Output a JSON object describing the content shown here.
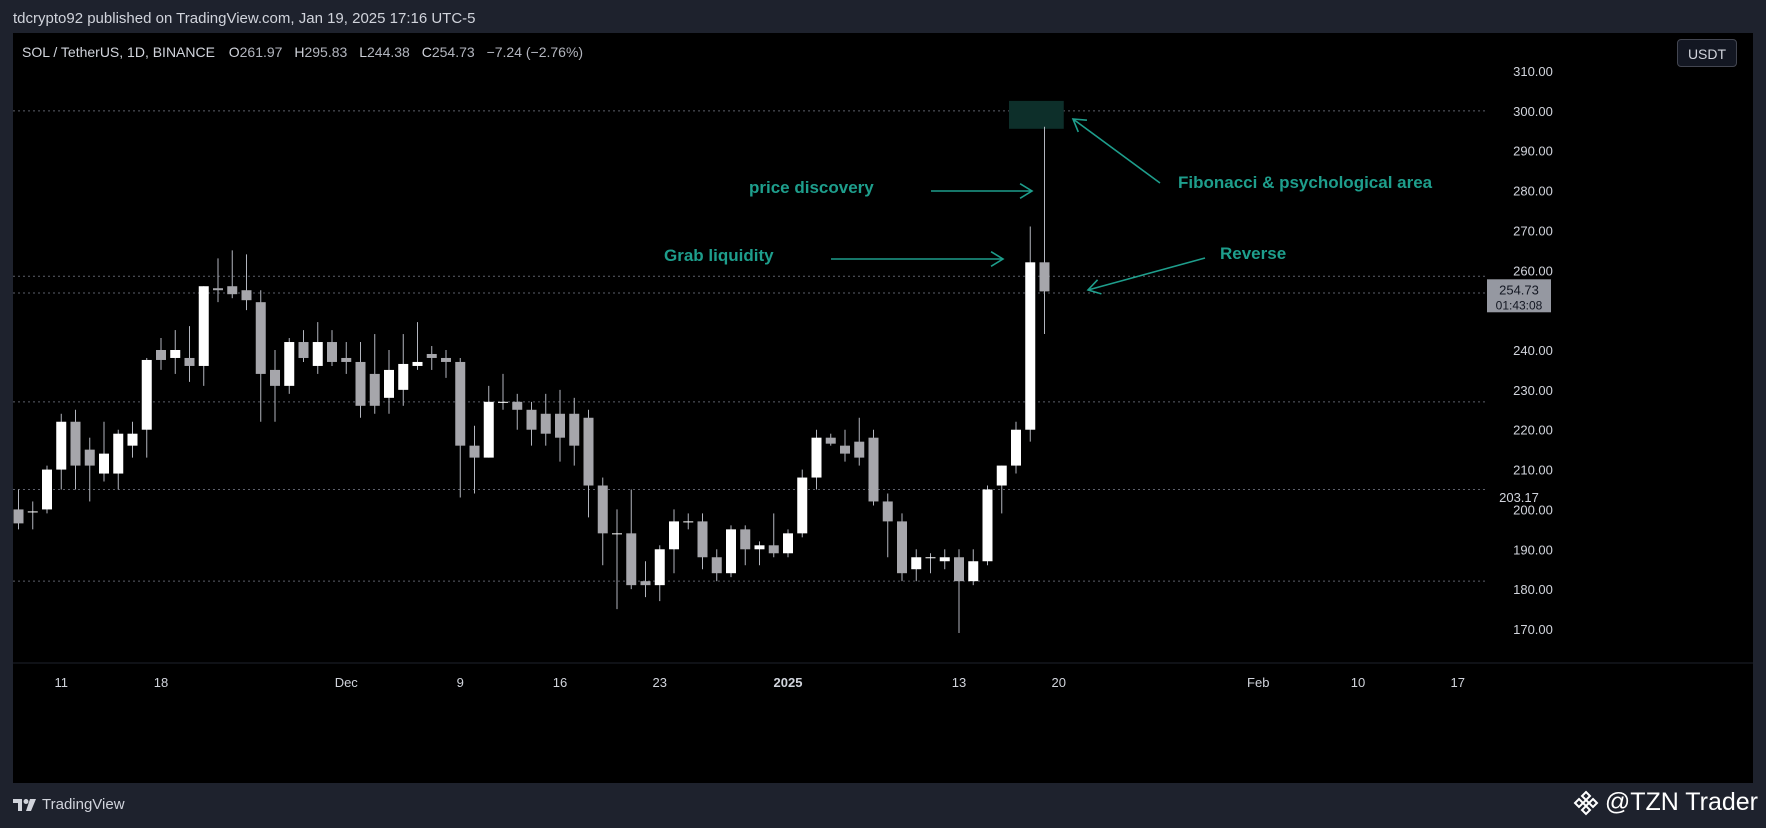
{
  "header": {
    "published_text": "tdcrypto92 published on TradingView.com, Jan 19, 2025 17:16 UTC-5"
  },
  "legend": {
    "symbol": "SOL / TetherUS, 1D, BINANCE",
    "open_label": "O",
    "open": "261.97",
    "high_label": "H",
    "high": "295.83",
    "low_label": "L",
    "low": "244.38",
    "close_label": "C",
    "close": "254.73",
    "change": "−7.24 (−2.76%)"
  },
  "currency_button": "USDT",
  "price_labels": {
    "last_price": "254.73",
    "countdown": "01:43:08",
    "level_price": "203.17"
  },
  "footer": {
    "brand": "TradingView",
    "watermark": "@TZN Trader"
  },
  "annotations": [
    {
      "text": "price discovery"
    },
    {
      "text": "Grab liquidity"
    },
    {
      "text": "Fibonacci & psychological area"
    },
    {
      "text": "Reverse"
    }
  ],
  "colors": {
    "background": "#000000",
    "frame": "#1e222d",
    "candle_up": "#ffffff",
    "candle_down": "#a6a6ab",
    "wick": "#b2b5be",
    "annotation": "#1e9e8c",
    "highlight_zone": "#0d2f2a",
    "grid_dotted": "#5d606b",
    "axis_text": "#d1d4dc"
  },
  "chart_data": {
    "type": "candlestick",
    "title": "SOL / TetherUS, 1D, BINANCE",
    "ylim": [
      163,
      316
    ],
    "y_ticks": [
      170,
      180,
      190,
      200,
      210,
      220,
      230,
      240,
      250,
      260,
      270,
      280,
      290,
      300,
      310
    ],
    "y_tick_labels": [
      "170.00",
      "180.00",
      "190.00",
      "200.00",
      "210.00",
      "220.00",
      "230.00",
      "240.00",
      "",
      "260.00",
      "270.00",
      "280.00",
      "290.00",
      "300.00",
      "310.00"
    ],
    "x_tick_labels": [
      {
        "label": "11",
        "date": "2024-11-11",
        "bold": false
      },
      {
        "label": "18",
        "date": "2024-11-18",
        "bold": false
      },
      {
        "label": "Dec",
        "date": "2024-12-01",
        "bold": false
      },
      {
        "label": "9",
        "date": "2024-12-09",
        "bold": false
      },
      {
        "label": "16",
        "date": "2024-12-16",
        "bold": false
      },
      {
        "label": "23",
        "date": "2024-12-23",
        "bold": false
      },
      {
        "label": "2025",
        "date": "2025-01-01",
        "bold": true
      },
      {
        "label": "13",
        "date": "2025-01-13",
        "bold": false
      },
      {
        "label": "20",
        "date": "2025-01-20",
        "bold": false
      },
      {
        "label": "Feb",
        "date": "2025-02-03",
        "bold": false
      },
      {
        "label": "10",
        "date": "2025-02-10",
        "bold": false
      },
      {
        "label": "17",
        "date": "2025-02-17",
        "bold": false
      }
    ],
    "first_date": "2024-11-08",
    "x_end_date": "2025-02-20",
    "horizontal_levels": [
      300.0,
      258.5,
      254.3,
      227.0,
      205.0,
      182.0
    ],
    "highlight_zone": {
      "date_start": "2025-01-17",
      "date_end": "2025-01-20",
      "y_low": 295.5,
      "y_high": 302.5
    },
    "candles": [
      {
        "o": 200,
        "h": 205,
        "l": 195,
        "c": 196.5
      },
      {
        "o": 199.5,
        "h": 202,
        "l": 195,
        "c": 199.5
      },
      {
        "o": 200,
        "h": 211,
        "l": 199,
        "c": 210
      },
      {
        "o": 210,
        "h": 224,
        "l": 205,
        "c": 222
      },
      {
        "o": 222,
        "h": 225,
        "l": 205,
        "c": 211
      },
      {
        "o": 215,
        "h": 218,
        "l": 202,
        "c": 211
      },
      {
        "o": 209,
        "h": 222,
        "l": 207,
        "c": 214
      },
      {
        "o": 209,
        "h": 220,
        "l": 205,
        "c": 219
      },
      {
        "o": 216,
        "h": 222,
        "l": 213,
        "c": 219
      },
      {
        "o": 220,
        "h": 238,
        "l": 213,
        "c": 237.5
      },
      {
        "o": 240,
        "h": 243,
        "l": 235,
        "c": 237.5
      },
      {
        "o": 238,
        "h": 245,
        "l": 234,
        "c": 240
      },
      {
        "o": 238,
        "h": 246,
        "l": 232,
        "c": 236
      },
      {
        "o": 236,
        "h": 256,
        "l": 231,
        "c": 256
      },
      {
        "o": 255.5,
        "h": 263,
        "l": 252,
        "c": 255
      },
      {
        "o": 256,
        "h": 265,
        "l": 253,
        "c": 254
      },
      {
        "o": 255,
        "h": 264,
        "l": 250,
        "c": 252.5
      },
      {
        "o": 252,
        "h": 255,
        "l": 222,
        "c": 234
      },
      {
        "o": 235,
        "h": 240,
        "l": 222,
        "c": 231
      },
      {
        "o": 231,
        "h": 243,
        "l": 229,
        "c": 242
      },
      {
        "o": 242,
        "h": 245,
        "l": 237,
        "c": 238
      },
      {
        "o": 236,
        "h": 247,
        "l": 234,
        "c": 242
      },
      {
        "o": 242,
        "h": 245,
        "l": 236,
        "c": 237
      },
      {
        "o": 238,
        "h": 242,
        "l": 234,
        "c": 237
      },
      {
        "o": 237,
        "h": 242,
        "l": 223,
        "c": 226
      },
      {
        "o": 234,
        "h": 244,
        "l": 224,
        "c": 226
      },
      {
        "o": 228,
        "h": 240,
        "l": 224,
        "c": 235
      },
      {
        "o": 230,
        "h": 244,
        "l": 226,
        "c": 236.5
      },
      {
        "o": 236,
        "h": 247,
        "l": 235,
        "c": 237
      },
      {
        "o": 239,
        "h": 241,
        "l": 235,
        "c": 238
      },
      {
        "o": 238,
        "h": 240,
        "l": 233,
        "c": 237
      },
      {
        "o": 237,
        "h": 238,
        "l": 203,
        "c": 216
      },
      {
        "o": 216,
        "h": 221,
        "l": 204,
        "c": 213
      },
      {
        "o": 213,
        "h": 231,
        "l": 213,
        "c": 227
      },
      {
        "o": 227,
        "h": 234,
        "l": 225,
        "c": 227
      },
      {
        "o": 227,
        "h": 229,
        "l": 220,
        "c": 225
      },
      {
        "o": 225,
        "h": 227,
        "l": 216,
        "c": 220
      },
      {
        "o": 224,
        "h": 229,
        "l": 216,
        "c": 219
      },
      {
        "o": 224,
        "h": 230,
        "l": 212,
        "c": 218
      },
      {
        "o": 224,
        "h": 228,
        "l": 211,
        "c": 216
      },
      {
        "o": 223,
        "h": 225,
        "l": 198,
        "c": 206
      },
      {
        "o": 206,
        "h": 208,
        "l": 186,
        "c": 194
      },
      {
        "o": 194,
        "h": 200,
        "l": 175,
        "c": 194
      },
      {
        "o": 194,
        "h": 205,
        "l": 180,
        "c": 181
      },
      {
        "o": 182,
        "h": 187,
        "l": 178,
        "c": 181
      },
      {
        "o": 181,
        "h": 191,
        "l": 177,
        "c": 190
      },
      {
        "o": 190,
        "h": 200,
        "l": 184,
        "c": 197
      },
      {
        "o": 197,
        "h": 199,
        "l": 195,
        "c": 197
      },
      {
        "o": 197,
        "h": 199,
        "l": 185,
        "c": 188
      },
      {
        "o": 188,
        "h": 190,
        "l": 182,
        "c": 184
      },
      {
        "o": 184,
        "h": 196,
        "l": 183,
        "c": 195
      },
      {
        "o": 195,
        "h": 196,
        "l": 186,
        "c": 190
      },
      {
        "o": 190,
        "h": 192,
        "l": 186,
        "c": 191
      },
      {
        "o": 191,
        "h": 199,
        "l": 188,
        "c": 189
      },
      {
        "o": 189,
        "h": 195,
        "l": 188,
        "c": 194
      },
      {
        "o": 194,
        "h": 210,
        "l": 193,
        "c": 208
      },
      {
        "o": 208,
        "h": 220,
        "l": 205,
        "c": 218
      },
      {
        "o": 218,
        "h": 219,
        "l": 216,
        "c": 216.5
      },
      {
        "o": 216,
        "h": 220,
        "l": 212,
        "c": 214
      },
      {
        "o": 217,
        "h": 223,
        "l": 211,
        "c": 213
      },
      {
        "o": 218,
        "h": 220,
        "l": 201,
        "c": 202
      },
      {
        "o": 202,
        "h": 204,
        "l": 188,
        "c": 197
      },
      {
        "o": 197,
        "h": 199,
        "l": 182,
        "c": 184
      },
      {
        "o": 185,
        "h": 190,
        "l": 182,
        "c": 188
      },
      {
        "o": 188,
        "h": 189,
        "l": 184,
        "c": 188
      },
      {
        "o": 187,
        "h": 190,
        "l": 185,
        "c": 188
      },
      {
        "o": 188,
        "h": 190,
        "l": 169,
        "c": 182
      },
      {
        "o": 182,
        "h": 190,
        "l": 181,
        "c": 187
      },
      {
        "o": 187,
        "h": 206,
        "l": 186,
        "c": 205
      },
      {
        "o": 206,
        "h": 211,
        "l": 199,
        "c": 211
      },
      {
        "o": 211,
        "h": 222,
        "l": 209,
        "c": 220
      },
      {
        "o": 220,
        "h": 271,
        "l": 217,
        "c": 262
      },
      {
        "o": 262,
        "h": 296,
        "l": 244,
        "c": 254.7
      }
    ]
  }
}
